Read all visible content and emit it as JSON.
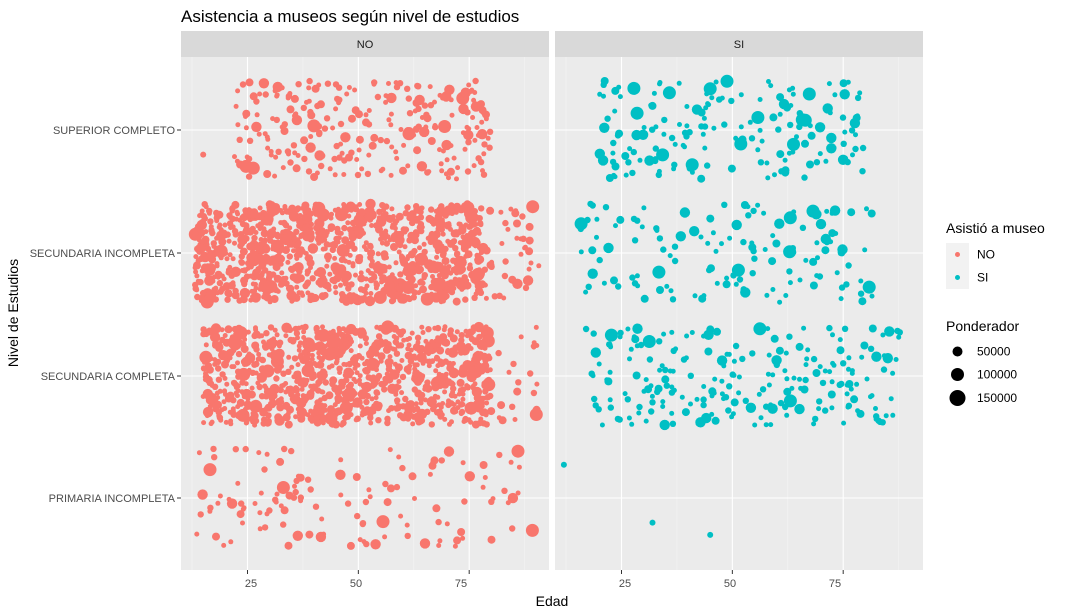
{
  "chart_data": {
    "type": "scatter",
    "title": "Asistencia a museos según nivel de estudios",
    "xlabel": "Edad",
    "ylabel": "Nivel de Estudios",
    "facet_labels": [
      "NO",
      "SI"
    ],
    "x_ticks": [
      25,
      50,
      75
    ],
    "xlim": [
      10,
      93
    ],
    "y_categories": [
      "PRIMARIA INCOMPLETA",
      "SECUNDARIA COMPLETA",
      "SECUNDARIA INCOMPLETA",
      "SUPERIOR COMPLETO"
    ],
    "grid": true,
    "jitter": true,
    "colors": {
      "NO": "#F8766D",
      "SI": "#00BFC4",
      "panel": "#EBEBEB",
      "strip": "#D9D9D9",
      "grid_major": "#FFFFFF"
    },
    "legend": {
      "position": "right",
      "color_title": "Asistió a museo",
      "color_entries": [
        {
          "label": "NO",
          "color": "#F8766D"
        },
        {
          "label": "SI",
          "color": "#00BFC4"
        }
      ],
      "size_title": "Ponderador",
      "size_entries": [
        {
          "label": "50000",
          "value": 50000
        },
        {
          "label": "100000",
          "value": 100000
        },
        {
          "label": "150000",
          "value": 150000
        }
      ]
    },
    "groups": [
      {
        "facet": "NO",
        "category": "SUPERIOR COMPLETO",
        "count": 260,
        "age_range": [
          22,
          80
        ],
        "extra_points": [
          [
            15,
            0.2
          ]
        ]
      },
      {
        "facet": "NO",
        "category": "SECUNDARIA INCOMPLETA",
        "count": 1100,
        "age_range": [
          13,
          92
        ],
        "dense_range": [
          13,
          78
        ]
      },
      {
        "facet": "NO",
        "category": "SECUNDARIA COMPLETA",
        "count": 1000,
        "age_range": [
          15,
          92
        ],
        "dense_range": [
          15,
          80
        ]
      },
      {
        "facet": "NO",
        "category": "PRIMARIA INCOMPLETA",
        "count": 130,
        "age_range": [
          12,
          90
        ]
      },
      {
        "facet": "SI",
        "category": "SUPERIOR COMPLETO",
        "count": 170,
        "age_range": [
          20,
          80
        ]
      },
      {
        "facet": "SI",
        "category": "SECUNDARIA INCOMPLETA",
        "count": 140,
        "age_range": [
          15,
          82
        ]
      },
      {
        "facet": "SI",
        "category": "SECUNDARIA COMPLETA",
        "count": 230,
        "age_range": [
          17,
          88
        ]
      },
      {
        "facet": "SI",
        "category": "PRIMARIA INCOMPLETA",
        "count": 3,
        "points": [
          [
            32,
            0.2
          ],
          [
            45,
            0.3
          ],
          [
            12,
            -0.27
          ]
        ]
      }
    ]
  }
}
